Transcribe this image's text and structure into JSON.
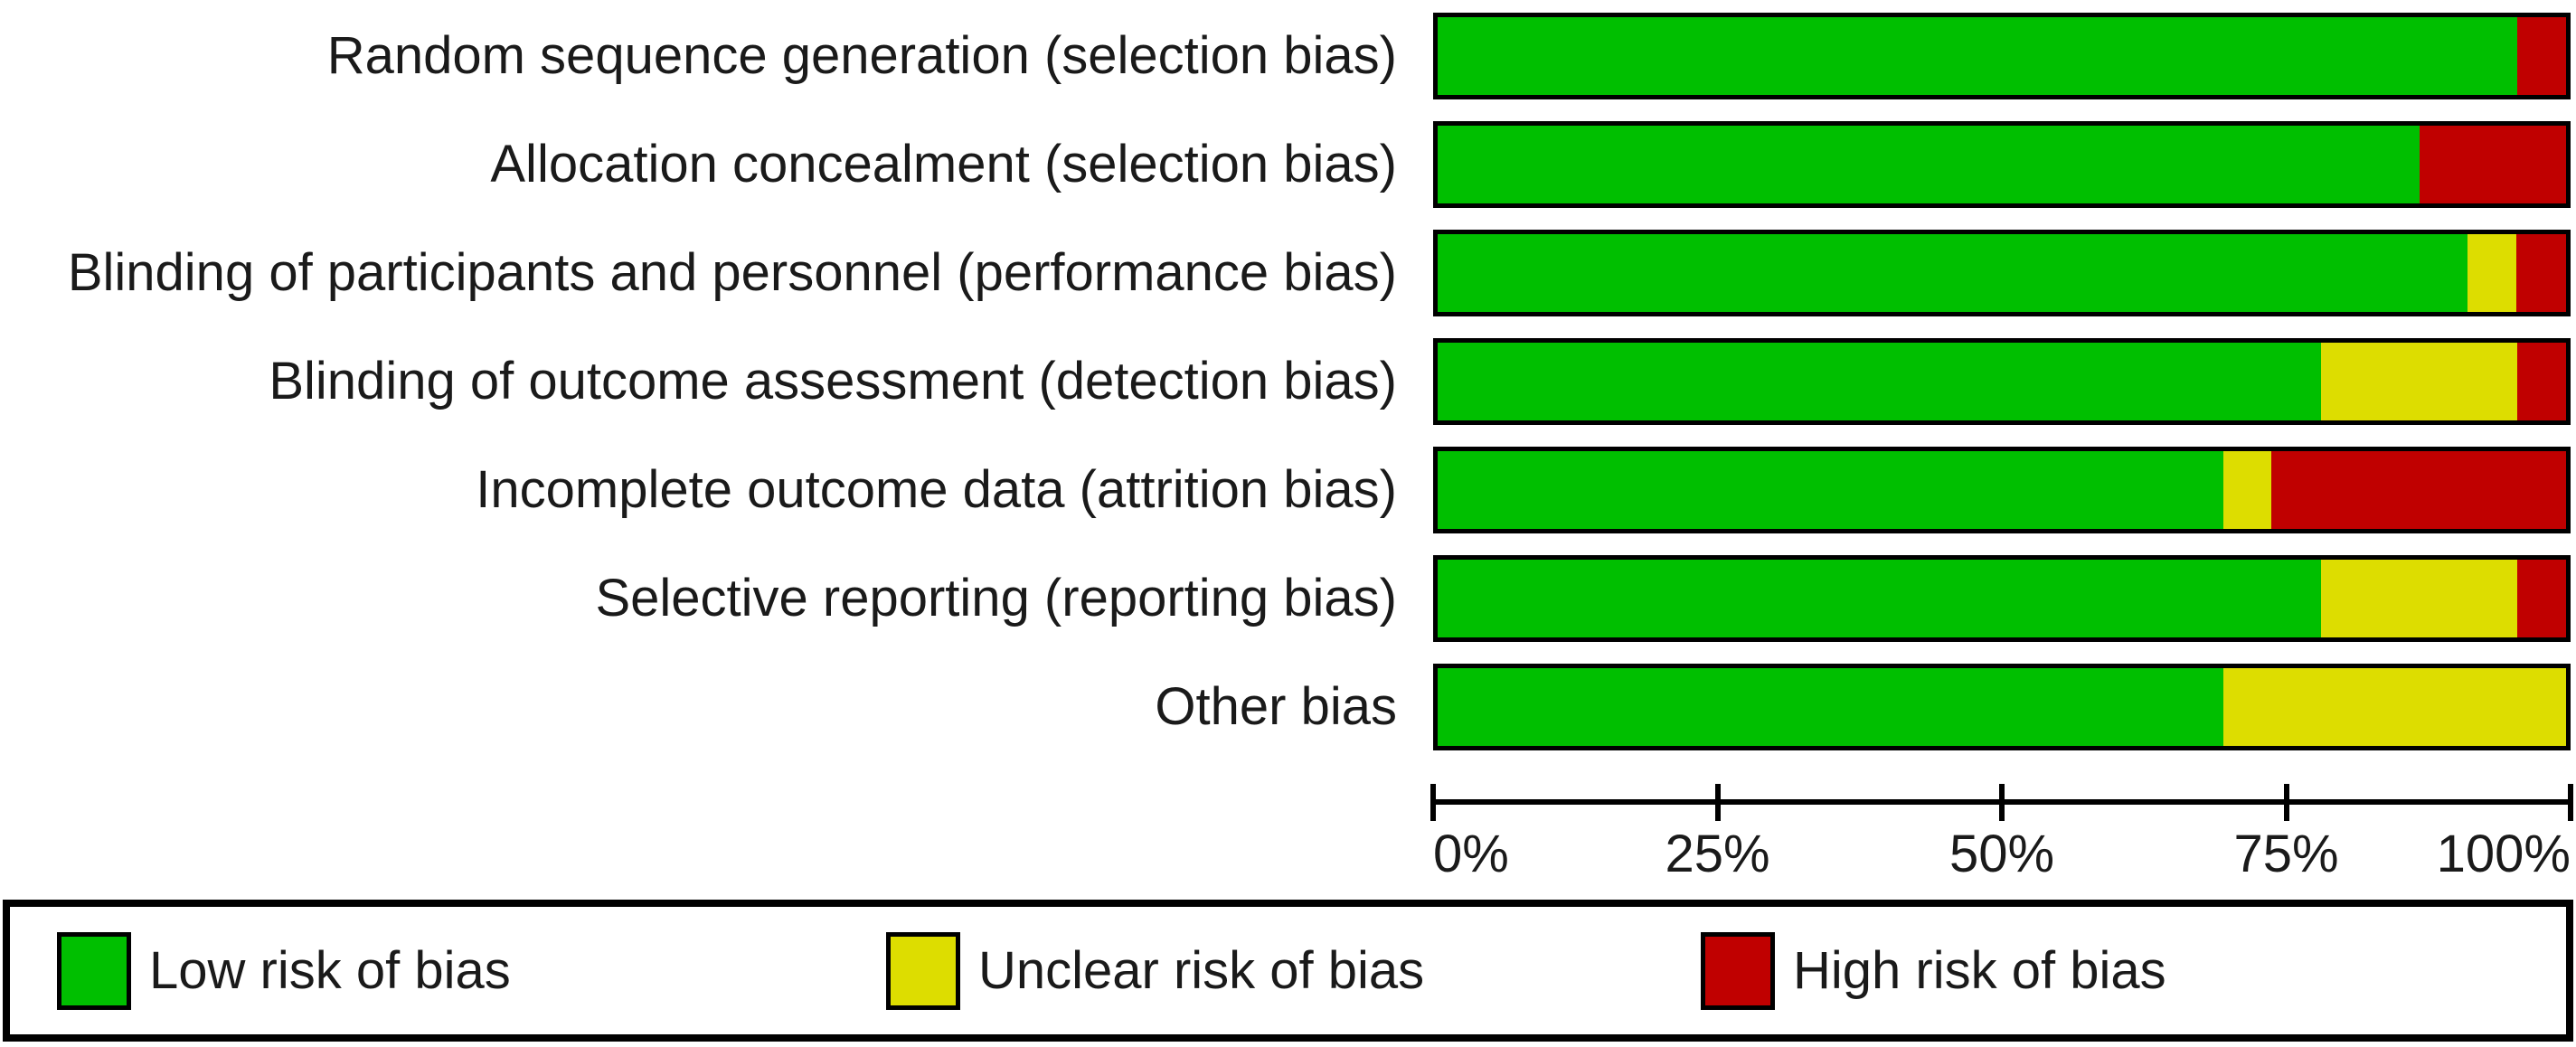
{
  "figure": {
    "background": "#ffffff",
    "text_color": "#1a1a1a",
    "border_color": "#000000"
  },
  "chart_data": {
    "type": "bar",
    "orientation": "horizontal",
    "stacked": true,
    "unit": "percent",
    "title": "",
    "xlabel": "",
    "ylabel": "",
    "xlim": [
      0,
      100
    ],
    "grid": false,
    "legend_position": "bottom",
    "categories": [
      "Random sequence generation (selection bias)",
      "Allocation concealment (selection bias)",
      "Blinding of participants and personnel (performance bias)",
      "Blinding of outcome assessment (detection bias)",
      "Incomplete outcome data (attrition bias)",
      "Selective reporting (reporting bias)",
      "Other bias"
    ],
    "series": [
      {
        "name": "Low risk of bias",
        "color": "#00bf00",
        "values": [
          95.7,
          87.0,
          91.3,
          78.3,
          69.6,
          78.3,
          69.6
        ]
      },
      {
        "name": "Unclear risk of bias",
        "color": "#dddd00",
        "values": [
          0.0,
          0.0,
          4.3,
          17.4,
          4.3,
          17.4,
          30.4
        ]
      },
      {
        "name": "High risk of bias",
        "color": "#c00000",
        "values": [
          4.3,
          13.0,
          4.4,
          4.3,
          26.1,
          4.3,
          0.0
        ]
      }
    ],
    "x_ticks": [
      "0%",
      "25%",
      "50%",
      "75%",
      "100%"
    ],
    "x_tick_values": [
      0,
      25,
      50,
      75,
      100
    ]
  },
  "legend": {
    "items": [
      {
        "label": "Low risk of bias",
        "color": "#00bf00"
      },
      {
        "label": "Unclear risk of bias",
        "color": "#dddd00"
      },
      {
        "label": "High risk of bias",
        "color": "#c00000"
      }
    ]
  }
}
